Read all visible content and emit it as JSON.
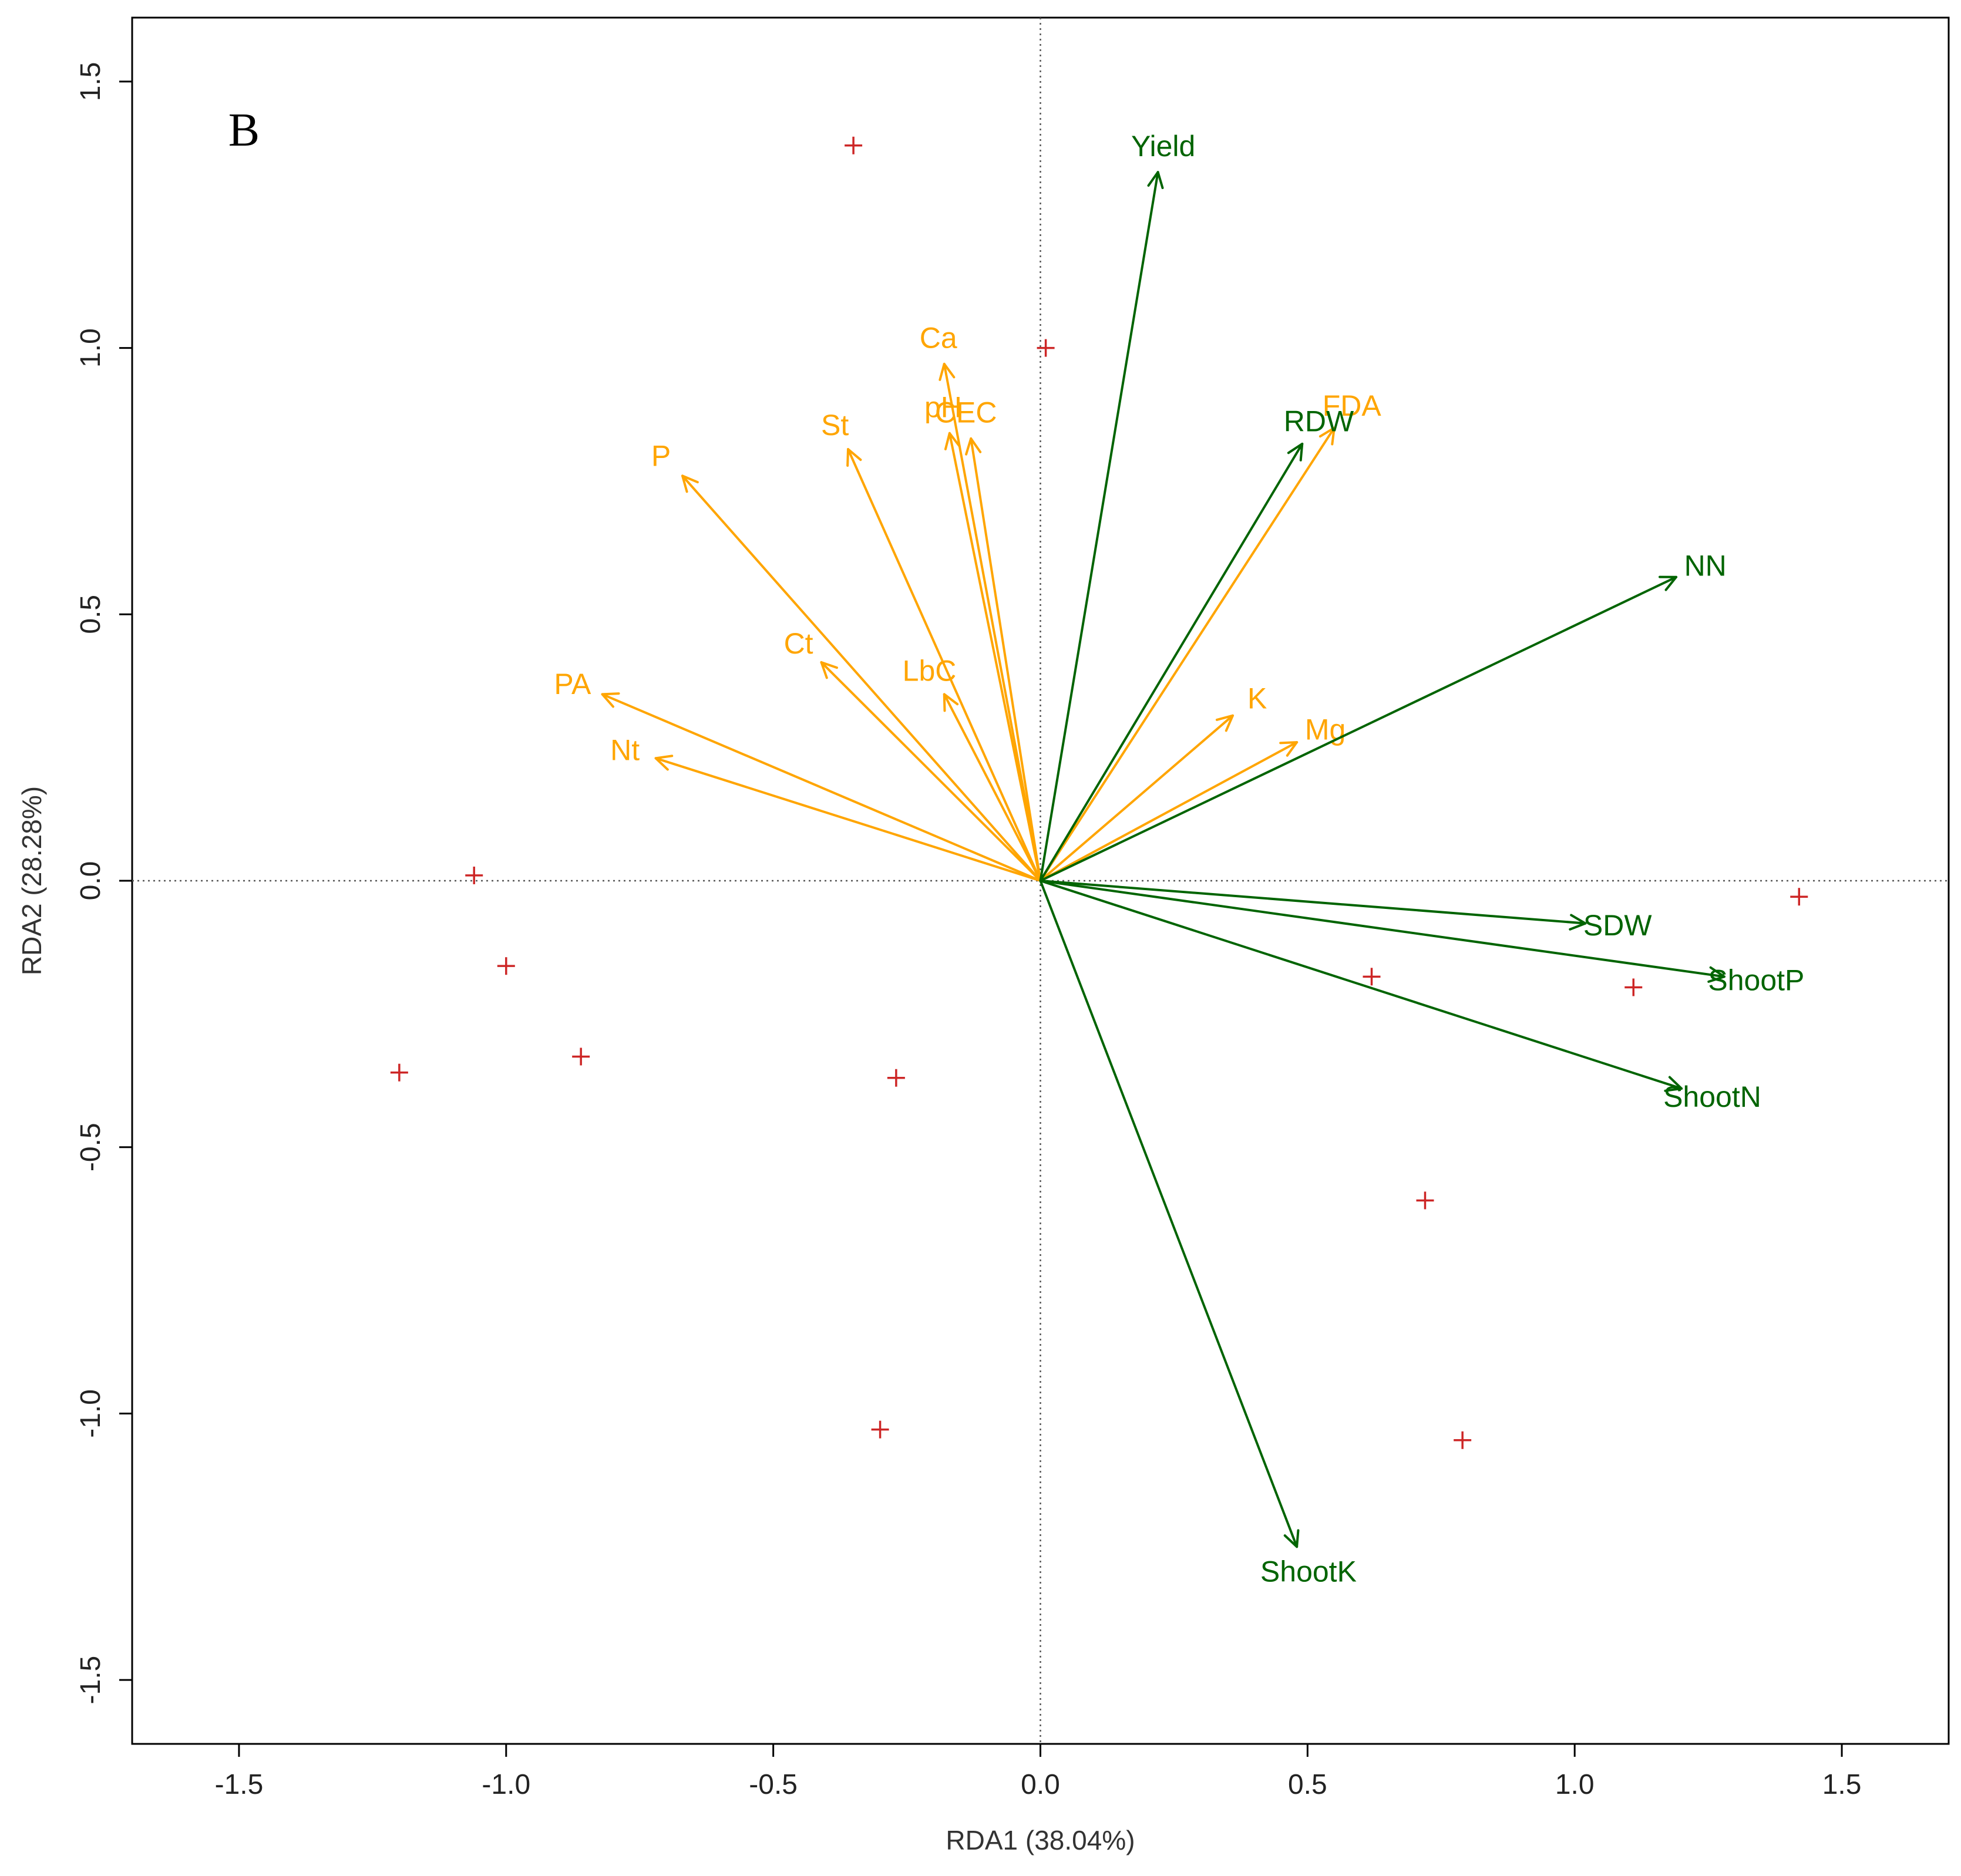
{
  "chart_data": {
    "type": "scatter",
    "subtype": "rda-biplot",
    "panel_label": "B",
    "xlabel": "RDA1 (38.04%)",
    "ylabel": "RDA2 (28.28%)",
    "xlim": [
      -1.7,
      1.7
    ],
    "ylim": [
      -1.62,
      1.62
    ],
    "xticks": [
      -1.5,
      -1.0,
      -0.5,
      0.0,
      0.5,
      1.0,
      1.5
    ],
    "yticks": [
      -1.5,
      -1.0,
      -0.5,
      0.0,
      0.5,
      1.0,
      1.5
    ],
    "xtick_labels": [
      "-1.5",
      "-1.0",
      "-0.5",
      "0.0",
      "0.5",
      "1.0",
      "1.5"
    ],
    "ytick_labels": [
      "-1.5",
      "-1.0",
      "-0.5",
      "0.0",
      "0.5",
      "1.0",
      "1.5"
    ],
    "reference_lines": {
      "x": 0,
      "y": 0,
      "style": "dotted"
    },
    "colors": {
      "explanatory": "#ffa500",
      "response": "#006400",
      "sites": "#cd2626",
      "axes": "#000000"
    },
    "explanatory_vectors": [
      {
        "label": "Ca",
        "x": -0.18,
        "y": 0.97
      },
      {
        "label": "pH",
        "x": -0.17,
        "y": 0.84
      },
      {
        "label": "CEC",
        "x": -0.13,
        "y": 0.83
      },
      {
        "label": "St",
        "x": -0.36,
        "y": 0.81
      },
      {
        "label": "P",
        "x": -0.67,
        "y": 0.76
      },
      {
        "label": "FDA",
        "x": 0.55,
        "y": 0.85
      },
      {
        "label": "Ct",
        "x": -0.41,
        "y": 0.41
      },
      {
        "label": "LbC",
        "x": -0.18,
        "y": 0.35
      },
      {
        "label": "PA",
        "x": -0.82,
        "y": 0.35
      },
      {
        "label": "Nt",
        "x": -0.72,
        "y": 0.23
      },
      {
        "label": "K",
        "x": 0.36,
        "y": 0.31
      },
      {
        "label": "Mg",
        "x": 0.48,
        "y": 0.26
      }
    ],
    "response_vectors": [
      {
        "label": "Yield",
        "x": 0.22,
        "y": 1.33
      },
      {
        "label": "RDW",
        "x": 0.49,
        "y": 0.82
      },
      {
        "label": "NN",
        "x": 1.19,
        "y": 0.57
      },
      {
        "label": "SDW",
        "x": 1.02,
        "y": -0.08
      },
      {
        "label": "ShootP",
        "x": 1.28,
        "y": -0.18
      },
      {
        "label": "ShootN",
        "x": 1.2,
        "y": -0.39
      },
      {
        "label": "ShootK",
        "x": 0.48,
        "y": -1.25
      }
    ],
    "sites": [
      {
        "x": -0.35,
        "y": 1.38
      },
      {
        "x": 0.01,
        "y": 1.0
      },
      {
        "x": -1.06,
        "y": 0.01
      },
      {
        "x": -1.0,
        "y": -0.16
      },
      {
        "x": -1.2,
        "y": -0.36
      },
      {
        "x": -0.86,
        "y": -0.33
      },
      {
        "x": -0.27,
        "y": -0.37
      },
      {
        "x": -0.3,
        "y": -1.03
      },
      {
        "x": 0.62,
        "y": -0.18
      },
      {
        "x": 1.11,
        "y": -0.2
      },
      {
        "x": 1.42,
        "y": -0.03
      },
      {
        "x": 0.72,
        "y": -0.6
      },
      {
        "x": 0.79,
        "y": -1.05
      }
    ]
  }
}
